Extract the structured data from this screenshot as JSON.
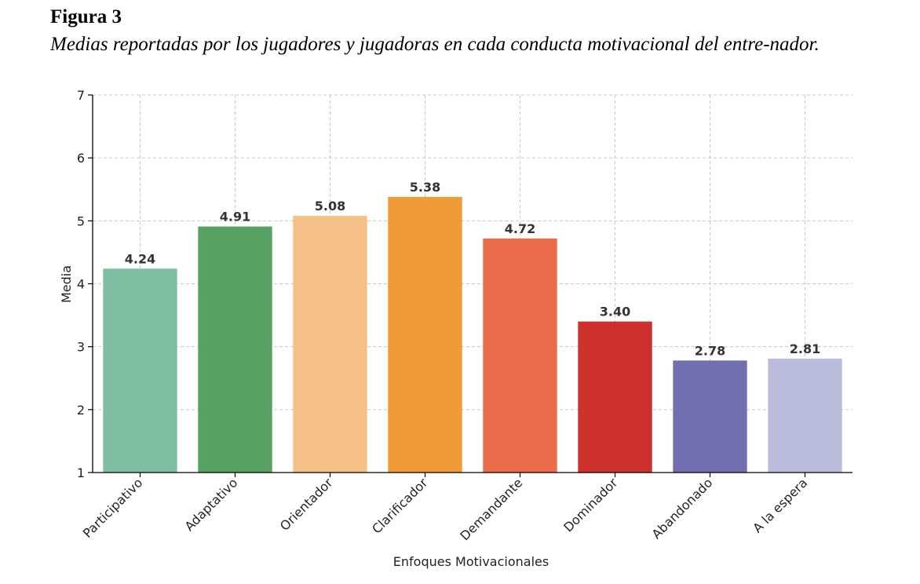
{
  "figure": {
    "label": "Figura 3",
    "caption": "Medias reportadas por los jugadores y jugadoras en cada conducta motivacional del entre-nador.",
    "cut_text": "… … … … … … … …"
  },
  "chart_data": {
    "type": "bar",
    "title": "",
    "xlabel": "Enfoques Motivacionales",
    "ylabel": "Media",
    "ylim": [
      1,
      7
    ],
    "yticks": [
      1,
      2,
      3,
      4,
      5,
      6,
      7
    ],
    "grid": true,
    "categories": [
      "Participativo",
      "Adaptativo",
      "Orientador",
      "Clarificador",
      "Demandante",
      "Dominador",
      "Abandonado",
      "A la espera"
    ],
    "values": [
      4.24,
      4.91,
      5.08,
      5.38,
      4.72,
      3.4,
      2.78,
      2.81
    ],
    "value_labels": [
      "4.24",
      "4.91",
      "5.08",
      "5.38",
      "4.72",
      "3.40",
      "2.78",
      "2.81"
    ],
    "colors": [
      "#7fc0a4",
      "#57a263",
      "#f5bf88",
      "#f09a38",
      "#ea6c4a",
      "#cc312b",
      "#726fb0",
      "#bbbcdc"
    ]
  }
}
